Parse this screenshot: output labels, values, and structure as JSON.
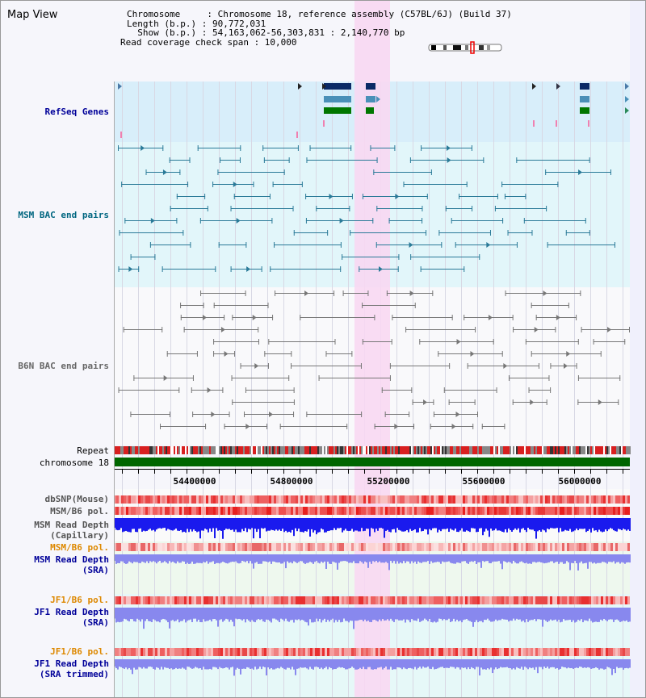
{
  "title": "Map View",
  "info": {
    "chromosome": "Chromosome     : Chromosome 18, reference assembly (C57BL/6J) (Build 37)",
    "length": "Length (b.p.) : 90,772,031",
    "show": "  Show (b.p.) : 54,163,062-56,303,831 : 2,140,770 bp",
    "coverage": "Read coverage check span : 10,000"
  },
  "tracks": {
    "refseq": "RefSeq Genes",
    "msm_bac": "MSM BAC end pairs",
    "b6n_bac": "B6N BAC end pairs",
    "repeat": "Repeat",
    "chromosome": "chromosome 18",
    "dbsnp": "dbSNP(Mouse)",
    "msm_pol": "MSM/B6 pol.",
    "msm_depth_cap_1": "MSM Read Depth",
    "msm_depth_cap_2": "(Capillary)",
    "msm_pol_2": "MSM/B6 pol.",
    "msm_depth_sra_1": "MSM Read Depth",
    "msm_depth_sra_2": "(SRA)",
    "jf1_pol": "JF1/B6 pol.",
    "jf1_depth_sra_1": "JF1 Read Depth",
    "jf1_depth_sra_2": "(SRA)",
    "jf1_pol_2": "JF1/B6 pol.",
    "jf1_depth_trim_1": "JF1 Read Depth",
    "jf1_depth_trim_2": "(SRA trimmed)"
  },
  "axis": {
    "ticks": [
      "54400000",
      "54800000",
      "55200000",
      "55600000",
      "56000000"
    ]
  },
  "colors": {
    "refseq_bg": "#d8eefa",
    "msm_bg": "#e2f6fa",
    "highlight": "#f8d8f2",
    "chromosome": "#006600",
    "depth_cap": "#1a1aee",
    "depth_sra": "#8888ee",
    "refseq_label": "#000099",
    "msm_label": "#006680",
    "b6n_label": "#666666",
    "pol_label": "#dd8800"
  }
}
